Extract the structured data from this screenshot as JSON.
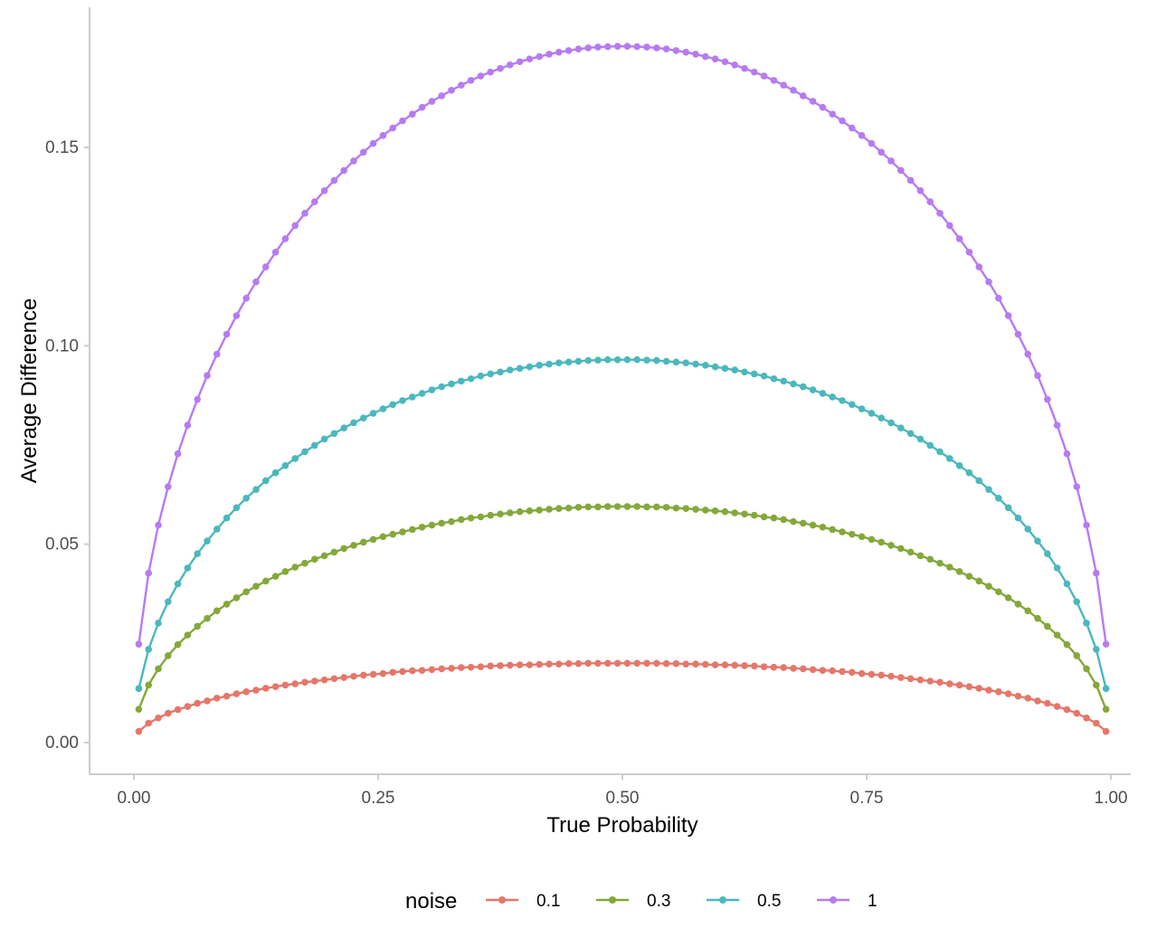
{
  "chart_data": {
    "type": "line",
    "title": "",
    "xlabel": "True Probability",
    "ylabel": "Average Difference",
    "xlim": [
      -0.02,
      1.02
    ],
    "ylim": [
      -0.008,
      0.185
    ],
    "x_ticks": [
      0.0,
      0.25,
      0.5,
      0.75,
      1.0
    ],
    "x_tick_labels": [
      "0.00",
      "0.25",
      "0.50",
      "0.75",
      "1.00"
    ],
    "y_ticks": [
      0.0,
      0.05,
      0.1,
      0.15
    ],
    "y_tick_labels": [
      "0.00",
      "0.05",
      "0.10",
      "0.15"
    ],
    "grid": false,
    "markers": true,
    "legend": {
      "title": "noise",
      "position": "bottom"
    },
    "x_range": {
      "start": 0.005,
      "end": 0.995,
      "step": 0.01
    },
    "series": [
      {
        "name": "0.1",
        "color": "#E5776A",
        "peak": 0.02,
        "values": []
      },
      {
        "name": "0.3",
        "color": "#84A83A",
        "peak": 0.0595,
        "values": []
      },
      {
        "name": "0.5",
        "color": "#4BB8BC",
        "peak": 0.0965,
        "values": []
      },
      {
        "name": "1",
        "color": "#B67BF2",
        "peak": 0.1755,
        "values": []
      }
    ]
  }
}
